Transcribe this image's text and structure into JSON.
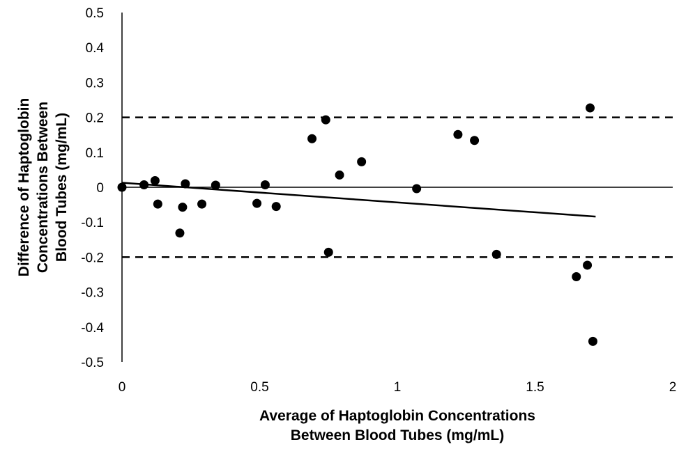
{
  "chart_data": {
    "type": "scatter",
    "title": "",
    "xlabel_lines": [
      "Average of Haptoglobin Concentrations",
      "Between Blood Tubes (mg/mL)"
    ],
    "ylabel_lines": [
      "Difference of Haptoglobin",
      "Concentrations Between",
      "Blood Tubes (mg/mL)"
    ],
    "xlim": [
      0,
      2
    ],
    "ylim": [
      -0.5,
      0.5
    ],
    "x_ticks": [
      0,
      0.5,
      1,
      1.5,
      2
    ],
    "x_tick_labels": [
      "0",
      "0.5",
      "1",
      "1.5",
      "2"
    ],
    "y_ticks": [
      0.5,
      0.4,
      0.3,
      0.2,
      0.1,
      0,
      -0.1,
      -0.2,
      -0.3,
      -0.4,
      -0.5
    ],
    "y_tick_labels": [
      "0.5",
      "0.4",
      "0.3",
      "0.2",
      "0.1",
      "0",
      "-0.1",
      "-0.2",
      "-0.3",
      "-0.4",
      "-0.5"
    ],
    "grid": false,
    "legend": "none",
    "series": [
      {
        "marker": "circle",
        "color": "#000000",
        "x": [
          0.0,
          0.08,
          0.12,
          0.13,
          0.21,
          0.22,
          0.23,
          0.29,
          0.34,
          0.49,
          0.52,
          0.56,
          0.69,
          0.74,
          0.75,
          0.79,
          0.87,
          1.07,
          1.22,
          1.28,
          1.36,
          1.65,
          1.69,
          1.7,
          1.71
        ],
        "y": [
          0.0,
          0.007,
          0.019,
          -0.048,
          -0.131,
          -0.057,
          0.01,
          -0.048,
          0.006,
          -0.046,
          0.007,
          -0.055,
          0.139,
          0.193,
          -0.186,
          0.035,
          0.073,
          -0.004,
          0.151,
          0.134,
          -0.192,
          -0.256,
          -0.223,
          0.227,
          -0.441
        ]
      }
    ],
    "trendline": {
      "x": [
        0.0,
        1.72
      ],
      "y": [
        0.013,
        -0.084
      ],
      "color": "#000000"
    },
    "reference_lines": [
      {
        "y": 0.2,
        "style": "dashed",
        "color": "#000000"
      },
      {
        "y": -0.2,
        "style": "dashed",
        "color": "#000000"
      }
    ]
  }
}
